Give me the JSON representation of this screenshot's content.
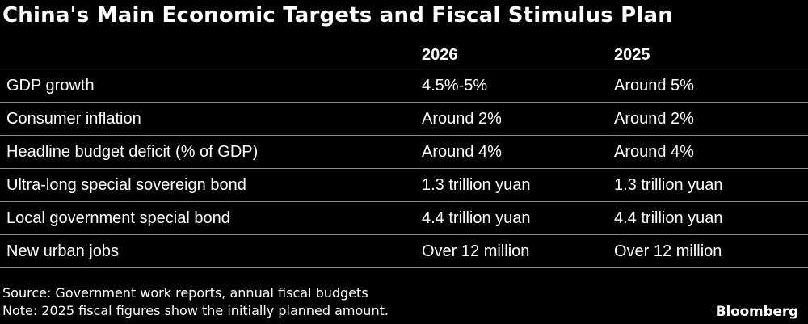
{
  "title": "China's Main Economic Targets and Fiscal Stimulus Plan",
  "table": {
    "columns": [
      "",
      "2026",
      "2025"
    ],
    "rows": [
      [
        "GDP growth",
        "4.5%-5%",
        "Around 5%"
      ],
      [
        "Consumer inflation",
        "Around 2%",
        "Around 2%"
      ],
      [
        "Headline budget deficit (% of GDP)",
        "Around 4%",
        "Around 4%"
      ],
      [
        "Ultra-long special sovereign bond",
        "1.3 trillion yuan",
        "1.3 trillion yuan"
      ],
      [
        "Local government special bond",
        "4.4 trillion yuan",
        "4.4 trillion yuan"
      ],
      [
        "New urban jobs",
        "Over 12 million",
        "Over 12 million"
      ]
    ]
  },
  "source": "Source: Government work reports, annual fiscal budgets",
  "note": "Note: 2025 fiscal figures show the initially planned amount.",
  "brand": "Bloomberg",
  "colors": {
    "background": "#000000",
    "text": "#ffffff",
    "rule": "#8c8c8c"
  }
}
